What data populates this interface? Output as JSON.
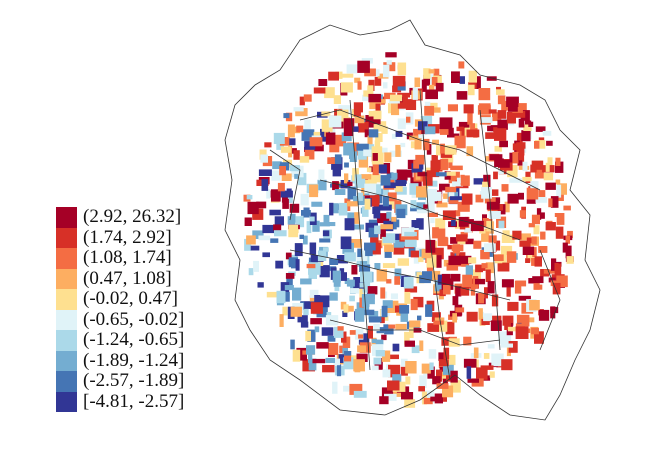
{
  "legend": {
    "classes": [
      {
        "label": "(2.92, 26.32]",
        "color": "#a50026"
      },
      {
        "label": "(1.74, 2.92]",
        "color": "#d73027"
      },
      {
        "label": "(1.08, 1.74]",
        "color": "#f46d43"
      },
      {
        "label": "(0.47, 1.08]",
        "color": "#fdae61"
      },
      {
        "label": "(-0.02, 0.47]",
        "color": "#fee090"
      },
      {
        "label": "(-0.65, -0.02]",
        "color": "#e0f3f8"
      },
      {
        "label": "(-1.24, -0.65]",
        "color": "#abd9e9"
      },
      {
        "label": "(-1.89, -1.24]",
        "color": "#74add1"
      },
      {
        "label": "(-2.57, -1.89]",
        "color": "#4575b4"
      },
      {
        "label": "[-4.81, -2.57]",
        "color": "#313695"
      }
    ]
  },
  "map": {
    "outline_color": "#333333",
    "background": "#ffffff"
  }
}
